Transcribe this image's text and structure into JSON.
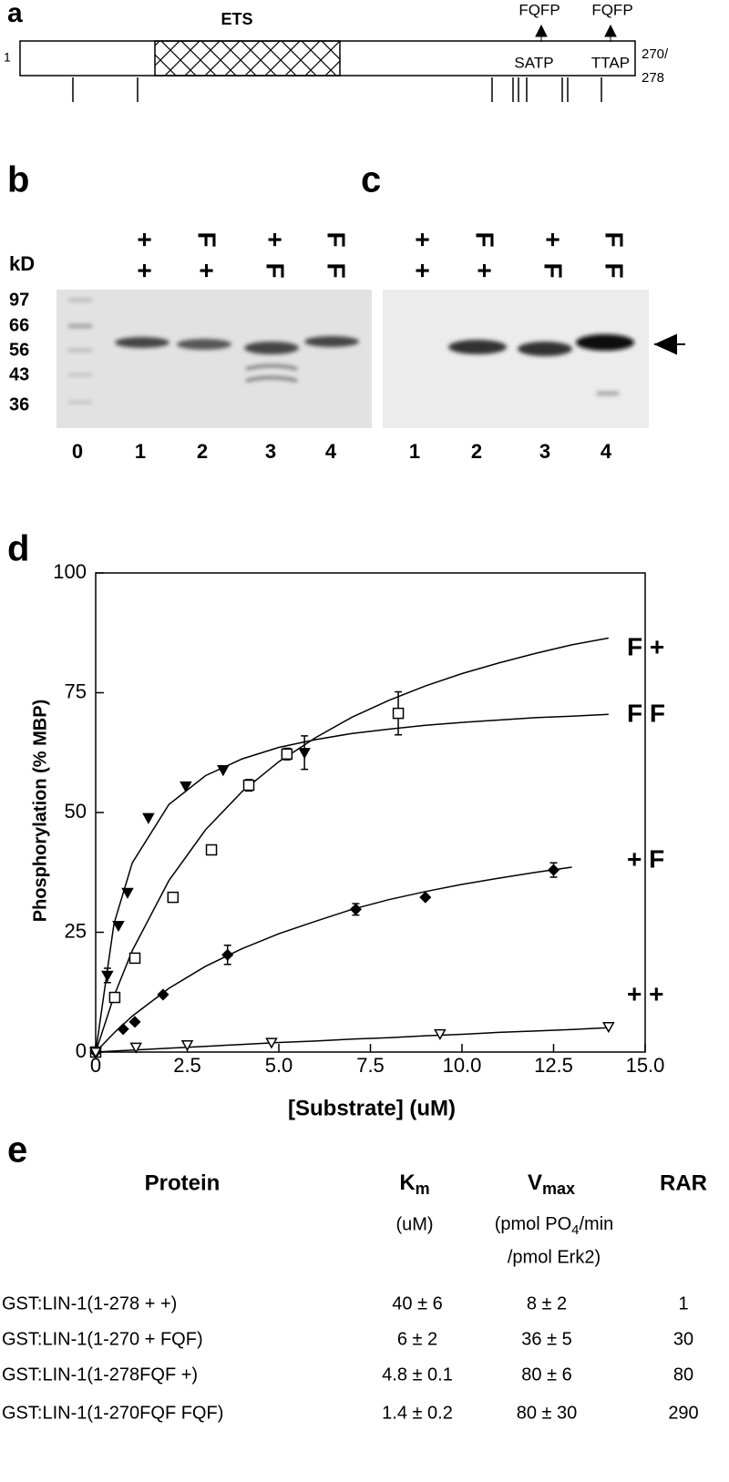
{
  "panel_a": {
    "label": "a",
    "domain": "ETS",
    "motifs": [
      "FQFP",
      "FQFP"
    ],
    "start": "1",
    "sites": [
      "SATP",
      "TTAP"
    ],
    "end": [
      "270/",
      "278"
    ]
  },
  "panel_b": {
    "label": "b",
    "unit": "kD",
    "markers": [
      "97",
      "66",
      "56",
      "43",
      "36"
    ],
    "lanes": [
      "0",
      "1",
      "2",
      "3",
      "4"
    ],
    "lane_headers": [
      [
        "+",
        "+"
      ],
      [
        "F",
        "+"
      ],
      [
        "+",
        "F"
      ],
      [
        "F",
        "F"
      ]
    ]
  },
  "panel_c": {
    "label": "c",
    "lanes": [
      "1",
      "2",
      "3",
      "4"
    ],
    "lane_headers": [
      [
        "+",
        "+"
      ],
      [
        "F",
        "+"
      ],
      [
        "+",
        "F"
      ],
      [
        "F",
        "F"
      ]
    ]
  },
  "chart_data": {
    "type": "scatter",
    "label": "d",
    "xlabel": "[Substrate] (uM)",
    "ylabel": "Phosphorylation (% MBP)",
    "xlim": [
      0,
      15
    ],
    "ylim": [
      0,
      100
    ],
    "xticks": [
      0,
      2.5,
      {
        "value": 5,
        "label": "5.0"
      },
      7.5,
      {
        "value": 10,
        "label": "10.0"
      },
      12.5,
      {
        "value": 15,
        "label": "15.0"
      }
    ],
    "yticks": [
      0,
      25,
      50,
      75,
      100
    ],
    "series": [
      {
        "name": "F +",
        "color": "#000",
        "marker": "square-open",
        "x": [
          0,
          0.52,
          1.07,
          2.11,
          3.16,
          4.18,
          5.22,
          8.26
        ],
        "values": [
          0,
          11.4,
          19.6,
          32.3,
          42.2,
          55.7,
          62.2,
          70.7
        ],
        "errors": [
          null,
          null,
          null,
          null,
          null,
          1.2,
          1.2,
          4.5
        ],
        "fit": {
          "x": [
            0,
            0.5,
            1,
            2,
            3,
            4,
            5,
            6,
            7,
            8,
            9,
            10,
            11,
            12,
            13,
            14
          ],
          "values": [
            0,
            11.7,
            21.2,
            35.8,
            46.4,
            54.4,
            60.6,
            65.6,
            69.9,
            73.4,
            76.4,
            79.0,
            81.2,
            83.2,
            85.0,
            86.4
          ]
        }
      },
      {
        "name": "F F",
        "color": "#000",
        "marker": "triangle-down-filled",
        "x": [
          0,
          0.32,
          0.62,
          0.87,
          1.44,
          2.46,
          3.48,
          5.7
        ],
        "values": [
          0,
          16,
          26.4,
          33.3,
          48.9,
          55.5,
          58.9,
          62.5
        ],
        "errors": [
          null,
          1.5,
          null,
          null,
          null,
          null,
          null,
          3.5
        ],
        "fit": {
          "x": [
            0,
            0.5,
            1,
            2,
            3,
            4,
            5,
            6,
            7,
            8,
            9,
            10,
            11,
            12,
            13,
            14
          ],
          "values": [
            0,
            26.8,
            39.5,
            51.7,
            57.7,
            61.2,
            63.6,
            65.2,
            66.5,
            67.4,
            68.2,
            68.8,
            69.3,
            69.8,
            70.1,
            70.5
          ]
        }
      },
      {
        "name": "+ F",
        "color": "#000",
        "marker": "diamond-filled",
        "x": [
          0,
          0.75,
          1.07,
          1.84,
          3.6,
          7.1,
          9.0,
          12.5
        ],
        "values": [
          0,
          4.8,
          6.3,
          12,
          20.3,
          29.8,
          32.3,
          38
        ],
        "errors": [
          null,
          null,
          null,
          null,
          2,
          1.2,
          null,
          1.5
        ],
        "fit": {
          "x": [
            0,
            0.5,
            1,
            2,
            3,
            4,
            5,
            6,
            7,
            8,
            9,
            10,
            11,
            12,
            13
          ],
          "values": [
            0,
            4.0,
            7.5,
            13.3,
            17.9,
            21.6,
            24.7,
            27.3,
            29.8,
            31.8,
            33.5,
            35.0,
            36.3,
            37.5,
            38.6
          ]
        }
      },
      {
        "name": "+ +",
        "color": "#000",
        "marker": "triangle-down-open",
        "x": [
          0,
          1.1,
          2.5,
          4.8,
          9.4,
          14.0
        ],
        "values": [
          0,
          1,
          1.5,
          2,
          3.8,
          5.3
        ],
        "errors": [
          null,
          null,
          null,
          null,
          null,
          null
        ],
        "fit": {
          "x": [
            0,
            0.5,
            1,
            2,
            3,
            4,
            5,
            6,
            7,
            8,
            9,
            10,
            11,
            12,
            13,
            14
          ],
          "values": [
            0,
            0.2,
            0.4,
            0.8,
            1.2,
            1.6,
            2.0,
            2.3,
            2.7,
            3.0,
            3.4,
            3.7,
            4.1,
            4.4,
            4.7,
            5.1
          ]
        }
      }
    ]
  },
  "table": {
    "label": "e",
    "headers": [
      {
        "main": "Protein"
      },
      {
        "main": "K",
        "sub": "m"
      },
      {
        "main": "V",
        "sub": "max"
      },
      {
        "main": "RAR"
      }
    ],
    "units": {
      "km": "(uM)",
      "vmax_line1": [
        "(pmol PO",
        "4",
        "/min"
      ],
      "vmax_line2": "/pmol Erk2)"
    },
    "rows": [
      [
        "GST:LIN-1(1-278 + +)",
        "40 ± 6",
        "8 ± 2",
        1
      ],
      [
        "GST:LIN-1(1-270 + FQF)",
        "6 ± 2",
        "36 ± 5",
        30
      ],
      [
        "GST:LIN-1(1-278FQF +)",
        "4.8 ± 0.1",
        "80 ± 6",
        80
      ],
      [
        "GST:LIN-1(1-270FQF FQF)",
        "1.4 ± 0.2",
        "80 ± 30",
        290
      ]
    ]
  }
}
